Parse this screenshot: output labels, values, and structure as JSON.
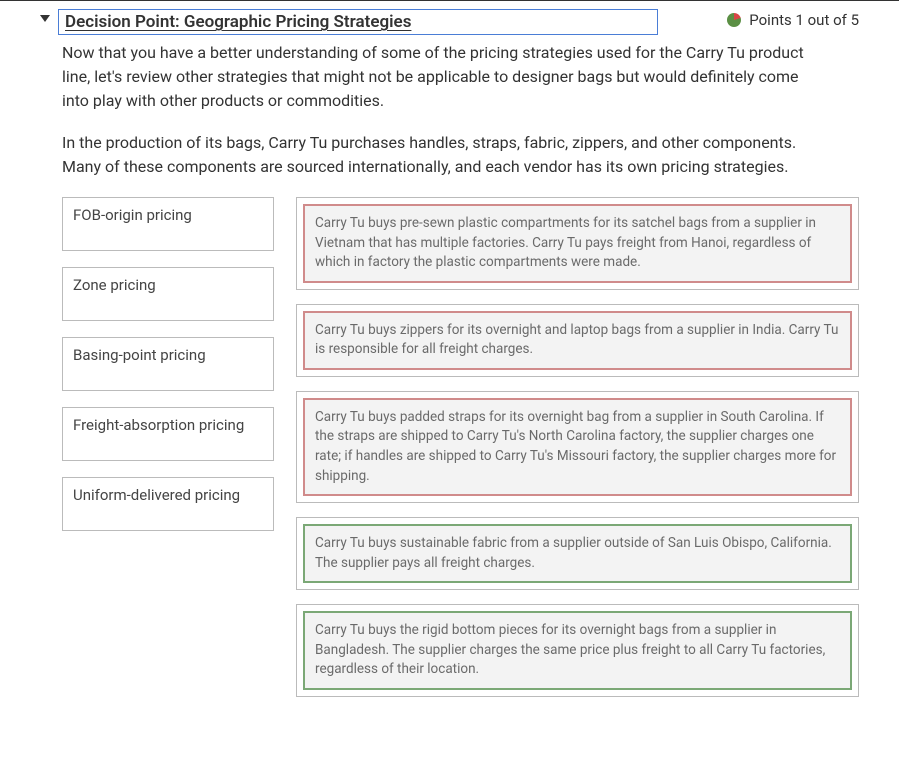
{
  "header": {
    "title": "Decision Point: Geographic Pricing Strategies",
    "points_text": "Points 1 out of 5"
  },
  "description": {
    "para1": "Now that you have a better understanding of some of the pricing strategies used for the Carry Tu product line, let's review other strategies that might not be applicable to designer bags but would definitely come into play with other products or commodities.",
    "para2": "In the production of its bags, Carry Tu purchases handles, straps, fabric, zippers, and other components. Many of these components are sourced internationally, and each vendor has its own pricing strategies."
  },
  "terms": [
    "FOB-origin pricing",
    "Zone pricing",
    "Basing-point pricing",
    "Freight-absorption pricing",
    "Uniform-delivered pricing"
  ],
  "scenarios": [
    {
      "text": "Carry Tu buys pre-sewn plastic compartments for its satchel bags from a supplier in Vietnam that has multiple factories. Carry Tu pays freight from Hanoi, regardless of which in factory the plastic compartments were made.",
      "state": "incorrect"
    },
    {
      "text": "Carry Tu buys zippers for its overnight and laptop bags from a supplier in India. Carry Tu is responsible for all freight charges.",
      "state": "incorrect"
    },
    {
      "text": "Carry Tu buys padded straps for its overnight bag from a supplier in South Carolina. If the straps are shipped to Carry Tu's North Carolina factory, the supplier charges one rate; if handles are shipped to Carry Tu's Missouri factory, the supplier charges more for shipping.",
      "state": "incorrect"
    },
    {
      "text": "Carry Tu buys sustainable fabric from a supplier outside of San Luis Obispo, California. The supplier pays all freight charges.",
      "state": "correct"
    },
    {
      "text": "Carry Tu buys the rigid bottom pieces for its overnight bags from a supplier in Bangladesh. The supplier charges the same price plus freight to all Carry Tu factories, regardless of their location.",
      "state": "correct"
    }
  ],
  "colors": {
    "title_border": "#4a7dd6",
    "incorrect_border": "#d08b8b",
    "correct_border": "#7ba876",
    "scenario_bg": "#f3f3f3",
    "box_border": "#bbbbbb"
  }
}
